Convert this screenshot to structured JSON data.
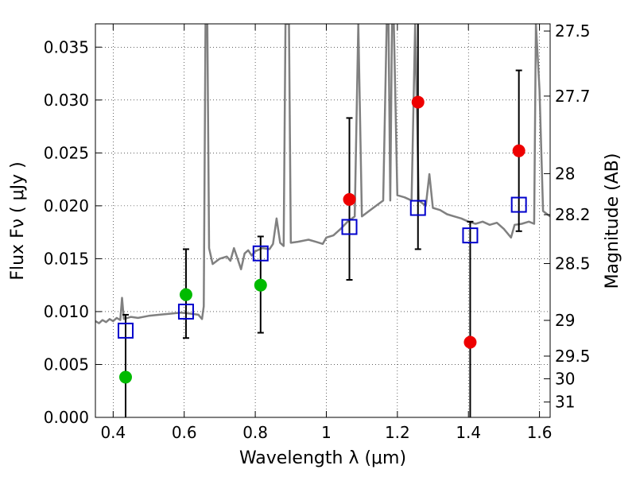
{
  "chart_data": {
    "type": "scatter",
    "xlabel": "Wavelength  λ (μm)",
    "ylabel": "Flux  Fν  ( μJy )",
    "ylabel_right": "Magnitude (AB)",
    "xlim": [
      0.35,
      1.63
    ],
    "ylim": [
      0.0,
      0.0372
    ],
    "x_ticks": [
      0.4,
      0.6,
      0.8,
      1.0,
      1.2,
      1.4,
      1.6
    ],
    "x_tick_labels": [
      "0.4",
      "0.6",
      "0.8",
      "1",
      "1.2",
      "1.4",
      "1.6"
    ],
    "y_ticks": [
      0.0,
      0.005,
      0.01,
      0.015,
      0.02,
      0.025,
      0.03,
      0.035
    ],
    "y_tick_labels": [
      "0.000",
      "0.005",
      "0.010",
      "0.015",
      "0.020",
      "0.025",
      "0.030",
      "0.035"
    ],
    "right_ticks": [
      {
        "label": "27.5",
        "flux": 0.03652
      },
      {
        "label": "27.7",
        "flux": 0.03037
      },
      {
        "label": "28",
        "flux": 0.02304
      },
      {
        "label": "28.2",
        "flux": 0.01916
      },
      {
        "label": "28.5",
        "flux": 0.01454
      },
      {
        "label": "29",
        "flux": 0.00917
      },
      {
        "label": "29.5",
        "flux": 0.00579
      },
      {
        "label": "30",
        "flux": 0.00365
      },
      {
        "label": "31",
        "flux": 0.00145
      }
    ],
    "grid": true,
    "colors": {
      "model_spectrum": "#808080",
      "detections": "#00bb00",
      "upper_limits": "#ee0000",
      "model_photometry": "#0000cc",
      "error_bars": "#000000"
    },
    "series": [
      {
        "kind": "line",
        "points": [
          [
            0.35,
            0.0091
          ],
          [
            0.36,
            0.0089
          ],
          [
            0.37,
            0.0092
          ],
          [
            0.38,
            0.009
          ],
          [
            0.39,
            0.0093
          ],
          [
            0.4,
            0.0091
          ],
          [
            0.41,
            0.0094
          ],
          [
            0.42,
            0.0092
          ],
          [
            0.425,
            0.0113
          ],
          [
            0.43,
            0.0093
          ],
          [
            0.45,
            0.0095
          ],
          [
            0.47,
            0.0094
          ],
          [
            0.5,
            0.0096
          ],
          [
            0.53,
            0.0097
          ],
          [
            0.56,
            0.0098
          ],
          [
            0.59,
            0.0099
          ],
          [
            0.62,
            0.0098
          ],
          [
            0.64,
            0.0097
          ],
          [
            0.65,
            0.0093
          ],
          [
            0.655,
            0.0105
          ],
          [
            0.66,
            0.0372
          ],
          [
            0.665,
            0.0372
          ],
          [
            0.67,
            0.016
          ],
          [
            0.68,
            0.0145
          ],
          [
            0.7,
            0.015
          ],
          [
            0.72,
            0.0152
          ],
          [
            0.73,
            0.0148
          ],
          [
            0.74,
            0.016
          ],
          [
            0.75,
            0.015
          ],
          [
            0.76,
            0.014
          ],
          [
            0.77,
            0.0155
          ],
          [
            0.78,
            0.0158
          ],
          [
            0.79,
            0.0153
          ],
          [
            0.8,
            0.0157
          ],
          [
            0.82,
            0.016
          ],
          [
            0.84,
            0.0159
          ],
          [
            0.85,
            0.0164
          ],
          [
            0.86,
            0.0188
          ],
          [
            0.87,
            0.0165
          ],
          [
            0.88,
            0.0162
          ],
          [
            0.885,
            0.0372
          ],
          [
            0.895,
            0.0372
          ],
          [
            0.9,
            0.0165
          ],
          [
            0.92,
            0.0166
          ],
          [
            0.95,
            0.0168
          ],
          [
            0.97,
            0.0166
          ],
          [
            0.99,
            0.0164
          ],
          [
            1.0,
            0.017
          ],
          [
            1.02,
            0.0172
          ],
          [
            1.04,
            0.0178
          ],
          [
            1.06,
            0.0185
          ],
          [
            1.08,
            0.019
          ],
          [
            1.09,
            0.0372
          ],
          [
            1.1,
            0.019
          ],
          [
            1.12,
            0.0195
          ],
          [
            1.14,
            0.02
          ],
          [
            1.16,
            0.0205
          ],
          [
            1.17,
            0.0372
          ],
          [
            1.175,
            0.0372
          ],
          [
            1.18,
            0.0205
          ],
          [
            1.185,
            0.0372
          ],
          [
            1.19,
            0.0372
          ],
          [
            1.2,
            0.021
          ],
          [
            1.22,
            0.0208
          ],
          [
            1.24,
            0.0205
          ],
          [
            1.25,
            0.0372
          ],
          [
            1.26,
            0.0205
          ],
          [
            1.28,
            0.02
          ],
          [
            1.29,
            0.023
          ],
          [
            1.3,
            0.0198
          ],
          [
            1.32,
            0.0196
          ],
          [
            1.34,
            0.0192
          ],
          [
            1.36,
            0.019
          ],
          [
            1.38,
            0.0188
          ],
          [
            1.4,
            0.0185
          ],
          [
            1.42,
            0.0183
          ],
          [
            1.44,
            0.0185
          ],
          [
            1.46,
            0.0182
          ],
          [
            1.48,
            0.0184
          ],
          [
            1.5,
            0.0178
          ],
          [
            1.52,
            0.017
          ],
          [
            1.53,
            0.0182
          ],
          [
            1.55,
            0.0183
          ],
          [
            1.57,
            0.0185
          ],
          [
            1.585,
            0.0183
          ],
          [
            1.59,
            0.0372
          ],
          [
            1.6,
            0.031
          ],
          [
            1.61,
            0.0195
          ],
          [
            1.63,
            0.019
          ]
        ]
      },
      {
        "kind": "points",
        "marker": "circle",
        "points": [
          [
            0.435,
            0.0038
          ],
          [
            0.605,
            0.0116
          ],
          [
            0.815,
            0.0125
          ]
        ]
      },
      {
        "kind": "points",
        "marker": "circle",
        "points": [
          [
            1.065,
            0.0206
          ],
          [
            1.258,
            0.0298
          ],
          [
            1.405,
            0.0071
          ],
          [
            1.542,
            0.0252
          ]
        ]
      },
      {
        "kind": "points",
        "marker": "square",
        "points": [
          [
            0.435,
            0.0082
          ],
          [
            0.605,
            0.01
          ],
          [
            0.815,
            0.0155
          ],
          [
            1.065,
            0.018
          ],
          [
            1.258,
            0.0198
          ],
          [
            1.405,
            0.0172
          ],
          [
            1.542,
            0.0201
          ]
        ]
      }
    ],
    "error_bars": [
      {
        "x": 0.435,
        "low": 0.0,
        "high": 0.0097
      },
      {
        "x": 0.605,
        "low": 0.0075,
        "high": 0.0159
      },
      {
        "x": 0.815,
        "low": 0.008,
        "high": 0.0171
      },
      {
        "x": 1.065,
        "low": 0.013,
        "high": 0.0283
      },
      {
        "x": 1.258,
        "low": 0.0159,
        "high": 0.0372
      },
      {
        "x": 1.405,
        "low": 0.0,
        "high": 0.0185
      },
      {
        "x": 1.542,
        "low": 0.0176,
        "high": 0.0328
      }
    ]
  }
}
